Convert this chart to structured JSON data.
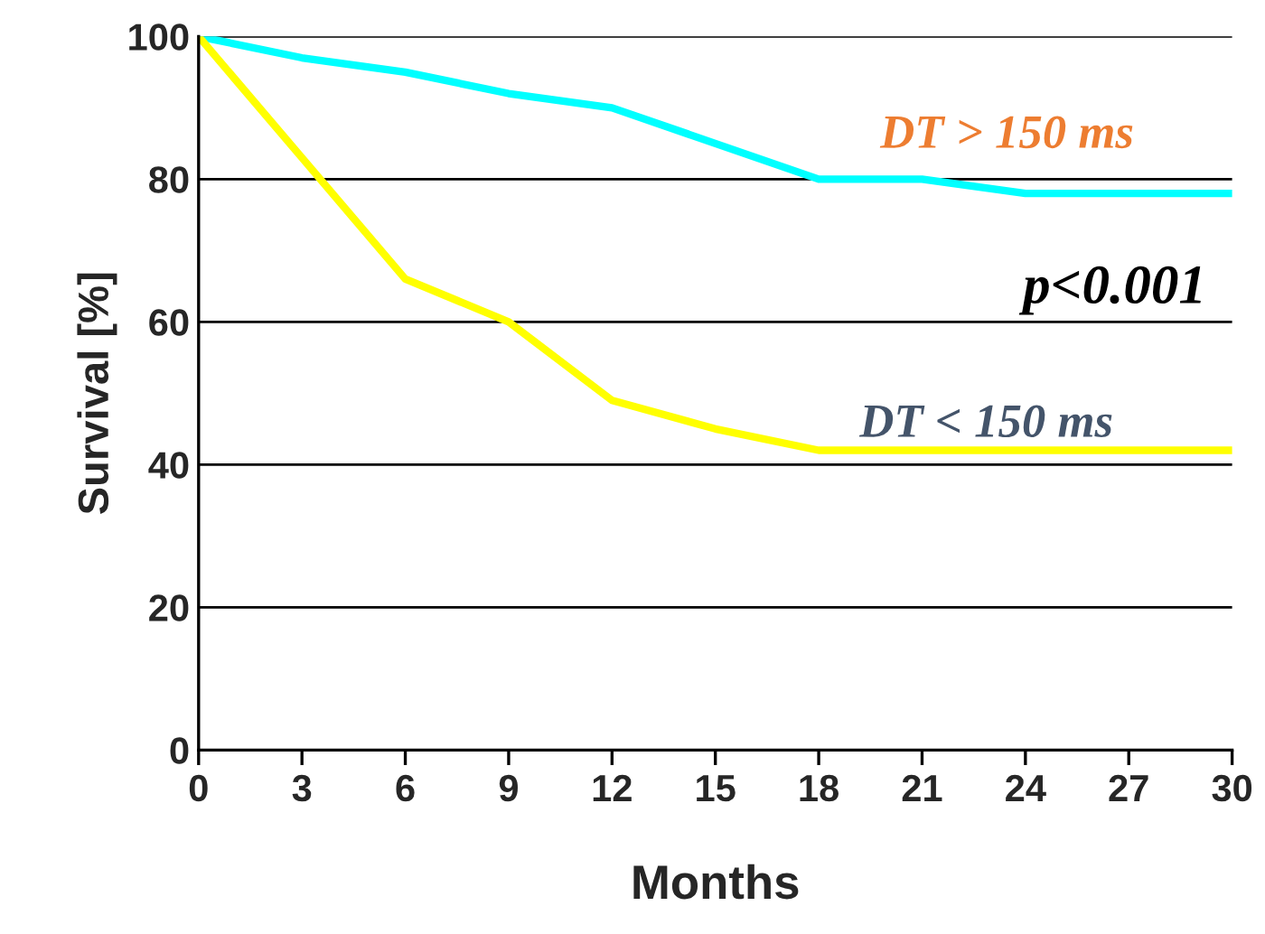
{
  "chart_data": {
    "type": "line",
    "xlabel": "Months",
    "ylabel": "Survival [%]",
    "x": [
      0,
      3,
      6,
      9,
      12,
      15,
      18,
      21,
      24,
      27,
      30
    ],
    "series": [
      {
        "color": "#00ffff",
        "values": [
          100,
          97,
          95,
          92,
          90,
          85,
          80,
          80,
          78,
          78,
          78
        ]
      },
      {
        "color": "#ffff00",
        "values": [
          100,
          83,
          66,
          60,
          49,
          45,
          42,
          42,
          42,
          42,
          42
        ]
      }
    ],
    "xlim": [
      0,
      30
    ],
    "xticks": [
      0,
      3,
      6,
      9,
      12,
      15,
      18,
      21,
      24,
      27,
      30
    ],
    "ylim": [
      0,
      100
    ],
    "yticks": [
      0,
      20,
      40,
      60,
      80,
      100
    ],
    "grid": "y",
    "marker": "none",
    "line_style": "solid",
    "annotations": [
      "DT > 150 ms",
      "p<0.001",
      "DT < 150 ms"
    ]
  }
}
